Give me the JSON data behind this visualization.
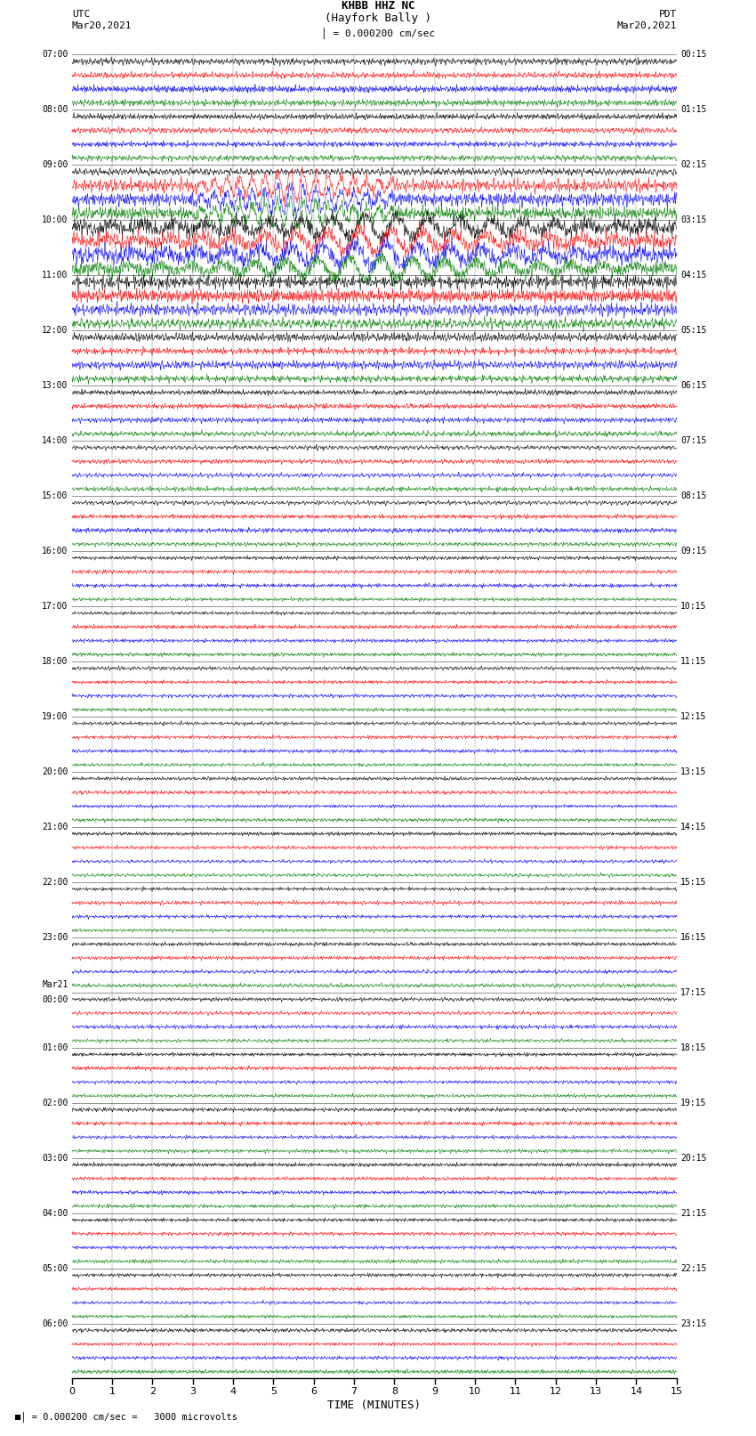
{
  "title_line1": "KHBB HHZ NC",
  "title_line2": "(Hayfork Bally )",
  "scale_text": "= 0.000200 cm/sec",
  "scale_note": "= 0.000200 cm/sec =   3000 microvolts",
  "left_label_top": "UTC",
  "left_label_date": "Mar20,2021",
  "right_label_top": "PDT",
  "right_label_date": "Mar20,2021",
  "xlabel": "TIME (MINUTES)",
  "background_color": "#ffffff",
  "trace_colors": [
    "black",
    "red",
    "blue",
    "green"
  ],
  "num_rows": 24,
  "left_times": [
    "07:00",
    "08:00",
    "09:00",
    "10:00",
    "11:00",
    "12:00",
    "13:00",
    "14:00",
    "15:00",
    "16:00",
    "17:00",
    "18:00",
    "19:00",
    "20:00",
    "21:00",
    "22:00",
    "23:00",
    "Mar21\n00:00",
    "01:00",
    "02:00",
    "03:00",
    "04:00",
    "05:00",
    "06:00"
  ],
  "right_times": [
    "00:15",
    "01:15",
    "02:15",
    "03:15",
    "04:15",
    "05:15",
    "06:15",
    "07:15",
    "08:15",
    "09:15",
    "10:15",
    "11:15",
    "12:15",
    "13:15",
    "14:15",
    "15:15",
    "16:15",
    "17:15",
    "18:15",
    "19:15",
    "20:15",
    "21:15",
    "22:15",
    "23:15"
  ],
  "special_row_idx": 17,
  "special_label": "Mar21"
}
